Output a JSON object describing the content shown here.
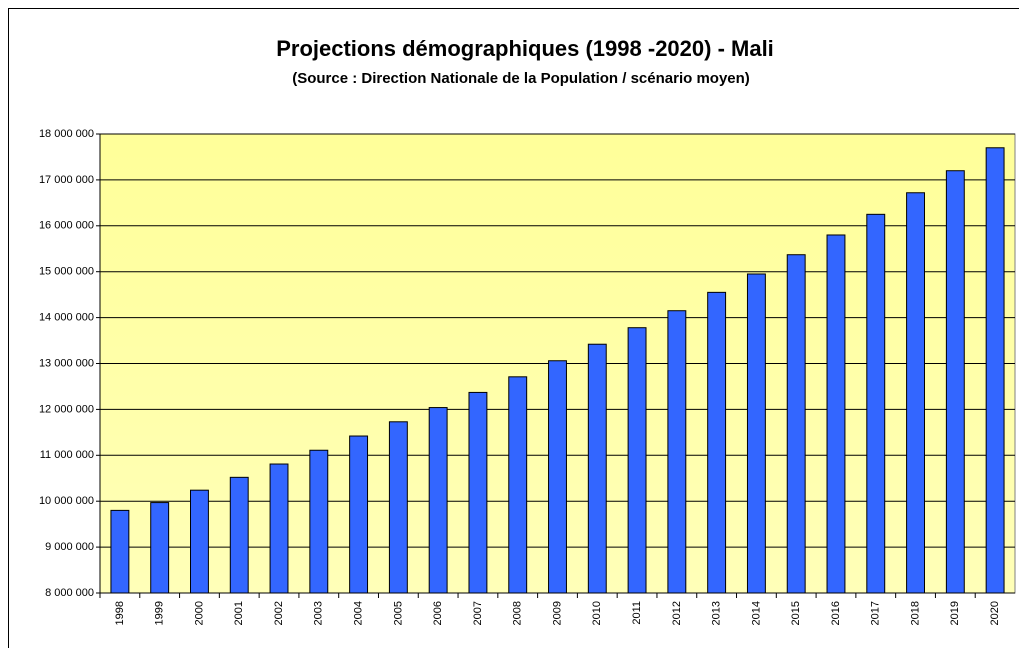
{
  "chart_data": {
    "type": "bar",
    "title": "Projections démographiques (1998 -2020) - Mali",
    "subtitle": "(Source : Direction Nationale de la Population / scénario moyen)",
    "categories": [
      "1998",
      "1999",
      "2000",
      "2001",
      "2002",
      "2003",
      "2004",
      "2005",
      "2006",
      "2007",
      "2008",
      "2009",
      "2010",
      "2011",
      "2012",
      "2013",
      "2014",
      "2015",
      "2016",
      "2017",
      "2018",
      "2019",
      "2020"
    ],
    "values": [
      9800000,
      9970000,
      10240000,
      10520000,
      10810000,
      11110000,
      11420000,
      11730000,
      12040000,
      12370000,
      12710000,
      13060000,
      13420000,
      13780000,
      14150000,
      14550000,
      14950000,
      15370000,
      15800000,
      16250000,
      16720000,
      17200000,
      17700000
    ],
    "color": "#3366ff",
    "ylim": [
      8000000,
      18000000
    ],
    "yticks": [
      {
        "value": 8000000,
        "label": "8 000 000"
      },
      {
        "value": 9000000,
        "label": "9 000 000"
      },
      {
        "value": 10000000,
        "label": "10 000 000"
      },
      {
        "value": 11000000,
        "label": "11 000 000"
      },
      {
        "value": 12000000,
        "label": "12 000 000"
      },
      {
        "value": 13000000,
        "label": "13 000 000"
      },
      {
        "value": 14000000,
        "label": "14 000 000"
      },
      {
        "value": 15000000,
        "label": "15 000 000"
      },
      {
        "value": 16000000,
        "label": "16 000 000"
      },
      {
        "value": 17000000,
        "label": "17 000 000"
      },
      {
        "value": 18000000,
        "label": "18 000 000"
      }
    ],
    "grid": true
  }
}
